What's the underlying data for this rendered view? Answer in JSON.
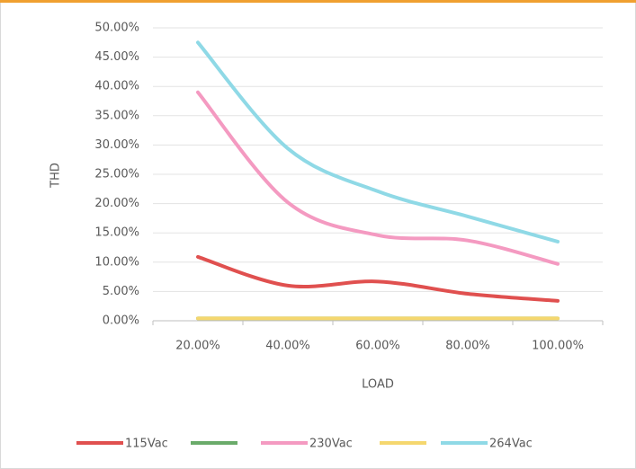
{
  "chart_data": {
    "type": "line",
    "categories": [
      "20.00%",
      "40.00%",
      "60.00%",
      "80.00%",
      "100.00%"
    ],
    "series": [
      {
        "name": "115Vac",
        "color": "#e0504f",
        "values": [
          10.9,
          6.0,
          6.7,
          4.6,
          3.4
        ]
      },
      {
        "name": null,
        "color": "#6aab6a",
        "values": [
          0.4,
          0.4,
          0.4,
          0.4,
          0.4
        ]
      },
      {
        "name": "230Vac",
        "color": "#f49ac1",
        "values": [
          39.0,
          20.2,
          14.6,
          13.7,
          9.7
        ]
      },
      {
        "name": null,
        "color": "#f5d76e",
        "values": [
          0.4,
          0.4,
          0.4,
          0.4,
          0.4
        ]
      },
      {
        "name": "264Vac",
        "color": "#8fd9e6",
        "values": [
          47.5,
          29.4,
          22.1,
          17.8,
          13.5
        ]
      }
    ],
    "xlabel": "LOAD",
    "ylabel": "THD",
    "ylim": [
      0,
      50
    ],
    "yticks": [
      {
        "value": 0,
        "label": "0.00%"
      },
      {
        "value": 5,
        "label": "5.00%"
      },
      {
        "value": 10,
        "label": "10.00%"
      },
      {
        "value": 15,
        "label": "15.00%"
      },
      {
        "value": 20,
        "label": "20.00%"
      },
      {
        "value": 25,
        "label": "25.00%"
      },
      {
        "value": 30,
        "label": "30.00%"
      },
      {
        "value": 35,
        "label": "35.00%"
      },
      {
        "value": 40,
        "label": "40.00%"
      },
      {
        "value": 45,
        "label": "45.00%"
      },
      {
        "value": 50,
        "label": "50.00%"
      }
    ],
    "grid": true,
    "legend": "bottom",
    "smooth": true
  }
}
